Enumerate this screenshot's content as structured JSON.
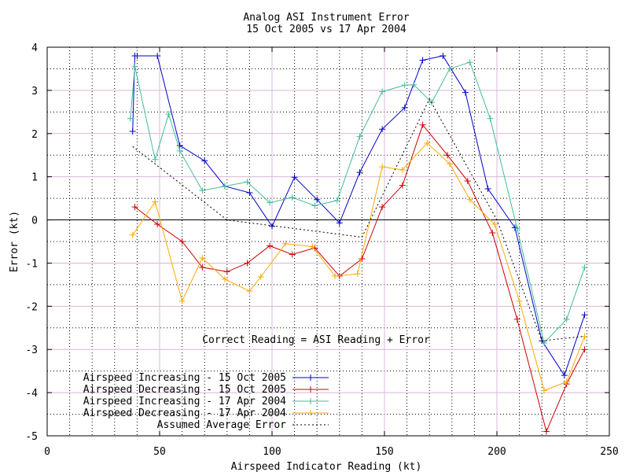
{
  "chart_data": {
    "type": "line",
    "title": "Analog ASI Instrument Error",
    "subtitle": "15 Oct 2005 vs 17 Apr 2004",
    "xlabel": "Airspeed Indicator Reading (kt)",
    "ylabel": "Error (kt)",
    "xlim": [
      0,
      250
    ],
    "ylim": [
      -5,
      4
    ],
    "xticks": [
      0,
      50,
      100,
      150,
      200,
      250
    ],
    "yticks": [
      -5,
      -4,
      -3,
      -2,
      -1,
      0,
      1,
      2,
      3,
      4
    ],
    "grid": true,
    "annotation": "Correct Reading = ASI Reading + Error",
    "legend_position": "bottom-left",
    "series": [
      {
        "name": "Airspeed Increasing - 15 Oct 2005",
        "color": "#0000cc",
        "marker": "plus",
        "x": [
          38,
          39,
          40,
          49,
          59,
          70,
          79,
          90,
          100,
          110,
          120,
          130,
          139,
          149,
          159,
          167,
          176,
          186,
          196,
          208,
          220,
          230,
          239
        ],
        "y": [
          2.05,
          3.8,
          3.8,
          3.8,
          1.72,
          1.37,
          0.78,
          0.63,
          -0.15,
          0.99,
          0.47,
          -0.07,
          1.1,
          2.1,
          2.6,
          3.7,
          3.8,
          2.95,
          0.72,
          -0.18,
          -2.8,
          -3.6,
          -2.2
        ]
      },
      {
        "name": "Airspeed Decreasing - 15 Oct 2005",
        "color": "#cc0000",
        "marker": "plus",
        "x": [
          39,
          49,
          60,
          69,
          80,
          89,
          99,
          109,
          119,
          130,
          140,
          149,
          158,
          167,
          178,
          187,
          198,
          209,
          222,
          231,
          239
        ],
        "y": [
          0.3,
          -0.1,
          -0.5,
          -1.1,
          -1.2,
          -1.0,
          -0.6,
          -0.8,
          -0.65,
          -1.3,
          -0.9,
          0.3,
          0.8,
          2.2,
          1.5,
          0.9,
          -0.3,
          -2.3,
          -4.9,
          -3.8,
          -3.0
        ]
      },
      {
        "name": "Airspeed Increasing - 17 Apr 2004",
        "color": "#44bb99",
        "marker": "plus",
        "x": [
          37,
          39,
          48,
          54,
          59,
          69,
          79,
          89,
          99,
          109,
          119,
          129,
          139,
          149,
          159,
          163,
          171,
          179,
          188,
          197,
          209,
          221,
          231,
          239
        ],
        "y": [
          2.35,
          3.55,
          1.4,
          2.45,
          1.6,
          0.68,
          0.78,
          0.88,
          0.4,
          0.52,
          0.33,
          0.45,
          1.93,
          2.97,
          3.12,
          3.13,
          2.72,
          3.5,
          3.65,
          2.35,
          -0.2,
          -2.85,
          -2.3,
          -1.1
        ]
      },
      {
        "name": "Airspeed Decreasing - 17 Apr 2004",
        "color": "#ffaa00",
        "marker": "plus",
        "x": [
          38,
          48,
          60,
          69,
          79,
          90,
          95,
          106,
          118,
          128,
          138,
          149,
          158,
          169,
          179,
          188,
          199,
          210,
          221,
          231,
          239
        ],
        "y": [
          -0.35,
          0.42,
          -1.88,
          -0.88,
          -1.37,
          -1.65,
          -1.32,
          -0.55,
          -0.62,
          -1.3,
          -1.25,
          1.23,
          1.16,
          1.78,
          1.3,
          0.47,
          -0.1,
          -1.88,
          -3.95,
          -3.75,
          -2.7
        ]
      },
      {
        "name": "Assumed Average Error",
        "color": "#000000",
        "marker": "none",
        "dashed": true,
        "x": [
          38,
          80,
          140,
          170,
          200,
          220,
          238
        ],
        "y": [
          1.7,
          0.0,
          -0.4,
          2.8,
          0.0,
          -2.8,
          -2.7
        ]
      }
    ]
  }
}
